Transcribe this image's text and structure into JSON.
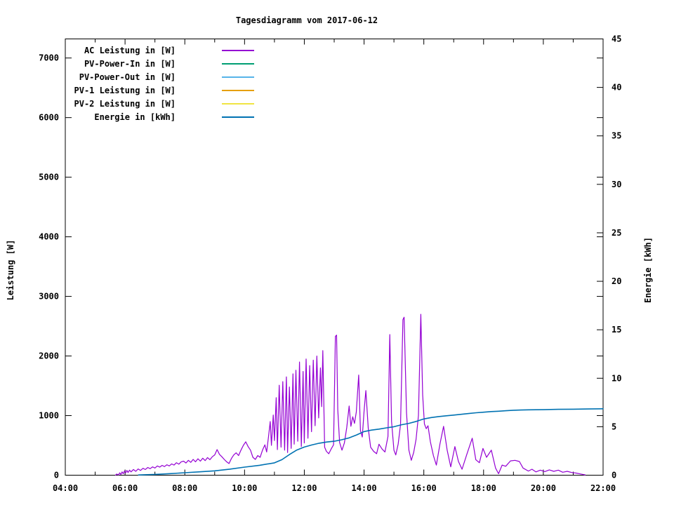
{
  "chart_data": {
    "type": "line",
    "title": "Tagesdiagramm vom 2017-06-12",
    "background_color": "#ffffff",
    "grid": "off",
    "legend_position": "top-left-inside",
    "x_axis": {
      "unit": "time-of-day",
      "range_hours": [
        4,
        22
      ],
      "major_tick_step_hours": 2,
      "minor_tick_step_hours": 1,
      "tick_labels": [
        "04:00",
        "06:00",
        "08:00",
        "10:00",
        "12:00",
        "14:00",
        "16:00",
        "18:00",
        "20:00",
        "22:00"
      ]
    },
    "y_axis": {
      "label": "Leistung [W]",
      "range": [
        0,
        7320
      ],
      "ticks": [
        {
          "value": 0,
          "label": "0"
        },
        {
          "value": 1000,
          "label": "1000"
        },
        {
          "value": 2000,
          "label": "2000"
        },
        {
          "value": 3000,
          "label": "3000"
        },
        {
          "value": 4000,
          "label": "4000"
        },
        {
          "value": 5000,
          "label": "5000"
        },
        {
          "value": 6000,
          "label": "6000"
        },
        {
          "value": 7000,
          "label": "7000"
        }
      ]
    },
    "y2_axis": {
      "label": "Energie [kWh]",
      "range": [
        0,
        45
      ],
      "ticks": [
        {
          "value": 0,
          "label": "0"
        },
        {
          "value": 5,
          "label": "5"
        },
        {
          "value": 10,
          "label": "10"
        },
        {
          "value": 15,
          "label": "15"
        },
        {
          "value": 20,
          "label": "20"
        },
        {
          "value": 25,
          "label": "25"
        },
        {
          "value": 30,
          "label": "30"
        },
        {
          "value": 35,
          "label": "35"
        },
        {
          "value": 40,
          "label": "40"
        },
        {
          "value": 45,
          "label": "45"
        }
      ]
    },
    "legend": [
      {
        "label": "AC Leistung in [W]",
        "color": "#9400d3"
      },
      {
        "label": "PV-Power-In in [W]",
        "color": "#009e73"
      },
      {
        "label": "PV-Power-Out in [W]",
        "color": "#56b4e9"
      },
      {
        "label": "PV-1 Leistung in [W]",
        "color": "#e69f00"
      },
      {
        "label": "PV-2 Leistung in [W]",
        "color": "#f0e442"
      },
      {
        "label": "Energie in [kWh]",
        "color": "#0072b2"
      }
    ],
    "series": [
      {
        "name": "AC Leistung in [W]",
        "color": "#9400d3",
        "axis": "y1",
        "stroke_width": 1.2,
        "points": [
          [
            5.68,
            0
          ],
          [
            5.72,
            20
          ],
          [
            5.78,
            5
          ],
          [
            5.82,
            40
          ],
          [
            5.86,
            12
          ],
          [
            5.9,
            55
          ],
          [
            5.94,
            25
          ],
          [
            5.98,
            70
          ],
          [
            6.02,
            40
          ],
          [
            6.06,
            80
          ],
          [
            6.1,
            45
          ],
          [
            6.15,
            85
          ],
          [
            6.2,
            55
          ],
          [
            6.28,
            95
          ],
          [
            6.36,
            65
          ],
          [
            6.44,
            105
          ],
          [
            6.52,
            80
          ],
          [
            6.6,
            115
          ],
          [
            6.68,
            95
          ],
          [
            6.76,
            130
          ],
          [
            6.84,
            110
          ],
          [
            6.92,
            140
          ],
          [
            7.0,
            120
          ],
          [
            7.08,
            155
          ],
          [
            7.16,
            135
          ],
          [
            7.24,
            165
          ],
          [
            7.32,
            145
          ],
          [
            7.4,
            175
          ],
          [
            7.48,
            155
          ],
          [
            7.56,
            190
          ],
          [
            7.64,
            170
          ],
          [
            7.72,
            210
          ],
          [
            7.8,
            185
          ],
          [
            7.88,
            225
          ],
          [
            7.96,
            235
          ],
          [
            8.04,
            205
          ],
          [
            8.12,
            250
          ],
          [
            8.2,
            215
          ],
          [
            8.28,
            265
          ],
          [
            8.36,
            225
          ],
          [
            8.44,
            275
          ],
          [
            8.52,
            235
          ],
          [
            8.6,
            285
          ],
          [
            8.68,
            245
          ],
          [
            8.76,
            295
          ],
          [
            8.84,
            260
          ],
          [
            8.92,
            310
          ],
          [
            9.0,
            340
          ],
          [
            9.08,
            430
          ],
          [
            9.16,
            350
          ],
          [
            9.24,
            310
          ],
          [
            9.32,
            265
          ],
          [
            9.4,
            225
          ],
          [
            9.48,
            195
          ],
          [
            9.56,
            280
          ],
          [
            9.64,
            340
          ],
          [
            9.72,
            375
          ],
          [
            9.8,
            330
          ],
          [
            9.88,
            420
          ],
          [
            9.96,
            500
          ],
          [
            10.04,
            560
          ],
          [
            10.12,
            480
          ],
          [
            10.2,
            420
          ],
          [
            10.28,
            300
          ],
          [
            10.36,
            265
          ],
          [
            10.44,
            330
          ],
          [
            10.52,
            300
          ],
          [
            10.6,
            420
          ],
          [
            10.68,
            510
          ],
          [
            10.74,
            390
          ],
          [
            10.8,
            640
          ],
          [
            10.86,
            900
          ],
          [
            10.9,
            500
          ],
          [
            10.96,
            1010
          ],
          [
            11.0,
            580
          ],
          [
            11.06,
            1300
          ],
          [
            11.1,
            430
          ],
          [
            11.16,
            1510
          ],
          [
            11.22,
            470
          ],
          [
            11.28,
            1570
          ],
          [
            11.34,
            420
          ],
          [
            11.4,
            1650
          ],
          [
            11.44,
            380
          ],
          [
            11.5,
            1480
          ],
          [
            11.56,
            450
          ],
          [
            11.62,
            1700
          ],
          [
            11.66,
            520
          ],
          [
            11.72,
            1760
          ],
          [
            11.78,
            570
          ],
          [
            11.84,
            1900
          ],
          [
            11.9,
            480
          ],
          [
            11.96,
            1740
          ],
          [
            12.0,
            540
          ],
          [
            12.06,
            1950
          ],
          [
            12.12,
            620
          ],
          [
            12.18,
            1840
          ],
          [
            12.24,
            730
          ],
          [
            12.3,
            1930
          ],
          [
            12.36,
            830
          ],
          [
            12.42,
            2000
          ],
          [
            12.48,
            960
          ],
          [
            12.54,
            1800
          ],
          [
            12.58,
            1150
          ],
          [
            12.62,
            2090
          ],
          [
            12.68,
            470
          ],
          [
            12.74,
            400
          ],
          [
            12.82,
            360
          ],
          [
            12.9,
            440
          ],
          [
            12.98,
            510
          ],
          [
            13.04,
            2330
          ],
          [
            13.08,
            2350
          ],
          [
            13.12,
            1100
          ],
          [
            13.18,
            550
          ],
          [
            13.26,
            420
          ],
          [
            13.34,
            540
          ],
          [
            13.42,
            800
          ],
          [
            13.5,
            1160
          ],
          [
            13.56,
            820
          ],
          [
            13.62,
            980
          ],
          [
            13.68,
            870
          ],
          [
            13.74,
            1060
          ],
          [
            13.82,
            1680
          ],
          [
            13.88,
            750
          ],
          [
            13.94,
            640
          ],
          [
            14.0,
            1080
          ],
          [
            14.06,
            1420
          ],
          [
            14.14,
            790
          ],
          [
            14.22,
            470
          ],
          [
            14.32,
            400
          ],
          [
            14.42,
            360
          ],
          [
            14.5,
            520
          ],
          [
            14.6,
            440
          ],
          [
            14.7,
            390
          ],
          [
            14.8,
            650
          ],
          [
            14.86,
            2360
          ],
          [
            14.92,
            900
          ],
          [
            15.0,
            420
          ],
          [
            15.06,
            340
          ],
          [
            15.14,
            520
          ],
          [
            15.22,
            850
          ],
          [
            15.3,
            2610
          ],
          [
            15.34,
            2650
          ],
          [
            15.42,
            1050
          ],
          [
            15.5,
            420
          ],
          [
            15.58,
            250
          ],
          [
            15.66,
            380
          ],
          [
            15.74,
            600
          ],
          [
            15.82,
            1000
          ],
          [
            15.9,
            2700
          ],
          [
            15.96,
            1350
          ],
          [
            16.02,
            860
          ],
          [
            16.08,
            780
          ],
          [
            16.14,
            830
          ],
          [
            16.22,
            560
          ],
          [
            16.32,
            330
          ],
          [
            16.42,
            170
          ],
          [
            16.54,
            520
          ],
          [
            16.66,
            820
          ],
          [
            16.78,
            420
          ],
          [
            16.9,
            140
          ],
          [
            17.04,
            480
          ],
          [
            17.16,
            230
          ],
          [
            17.28,
            100
          ],
          [
            17.44,
            350
          ],
          [
            17.62,
            620
          ],
          [
            17.74,
            260
          ],
          [
            17.86,
            210
          ],
          [
            17.98,
            450
          ],
          [
            18.1,
            300
          ],
          [
            18.26,
            420
          ],
          [
            18.4,
            120
          ],
          [
            18.5,
            25
          ],
          [
            18.62,
            170
          ],
          [
            18.74,
            150
          ],
          [
            18.9,
            240
          ],
          [
            19.05,
            250
          ],
          [
            19.2,
            230
          ],
          [
            19.32,
            120
          ],
          [
            19.5,
            70
          ],
          [
            19.62,
            100
          ],
          [
            19.75,
            55
          ],
          [
            19.9,
            85
          ],
          [
            20.05,
            60
          ],
          [
            20.2,
            90
          ],
          [
            20.35,
            65
          ],
          [
            20.5,
            85
          ],
          [
            20.65,
            50
          ],
          [
            20.8,
            65
          ],
          [
            20.95,
            45
          ],
          [
            21.1,
            35
          ],
          [
            21.25,
            20
          ],
          [
            21.4,
            5
          ]
        ]
      },
      {
        "name": "Energie in [kWh]",
        "color": "#0072b2",
        "axis": "y2",
        "stroke_width": 1.6,
        "points": [
          [
            6.45,
            0.02
          ],
          [
            7.0,
            0.08
          ],
          [
            7.5,
            0.16
          ],
          [
            8.0,
            0.25
          ],
          [
            8.5,
            0.35
          ],
          [
            9.0,
            0.45
          ],
          [
            9.5,
            0.62
          ],
          [
            10.0,
            0.83
          ],
          [
            10.5,
            1.02
          ],
          [
            11.0,
            1.27
          ],
          [
            11.25,
            1.6
          ],
          [
            11.5,
            2.13
          ],
          [
            11.75,
            2.6
          ],
          [
            12.0,
            2.9
          ],
          [
            12.25,
            3.12
          ],
          [
            12.5,
            3.3
          ],
          [
            12.75,
            3.42
          ],
          [
            13.0,
            3.5
          ],
          [
            13.25,
            3.65
          ],
          [
            13.5,
            3.85
          ],
          [
            13.75,
            4.15
          ],
          [
            14.0,
            4.5
          ],
          [
            14.25,
            4.65
          ],
          [
            14.5,
            4.75
          ],
          [
            14.75,
            4.88
          ],
          [
            15.0,
            5.0
          ],
          [
            15.25,
            5.2
          ],
          [
            15.5,
            5.35
          ],
          [
            15.75,
            5.55
          ],
          [
            16.0,
            5.8
          ],
          [
            16.25,
            5.95
          ],
          [
            16.5,
            6.05
          ],
          [
            16.75,
            6.13
          ],
          [
            17.0,
            6.2
          ],
          [
            17.25,
            6.28
          ],
          [
            17.5,
            6.36
          ],
          [
            17.75,
            6.44
          ],
          [
            18.0,
            6.5
          ],
          [
            18.25,
            6.56
          ],
          [
            18.5,
            6.6
          ],
          [
            18.75,
            6.65
          ],
          [
            19.0,
            6.7
          ],
          [
            19.25,
            6.72
          ],
          [
            19.5,
            6.74
          ],
          [
            20.0,
            6.76
          ],
          [
            20.5,
            6.79
          ],
          [
            21.0,
            6.81
          ],
          [
            21.5,
            6.83
          ],
          [
            22.0,
            6.85
          ]
        ]
      }
    ]
  }
}
